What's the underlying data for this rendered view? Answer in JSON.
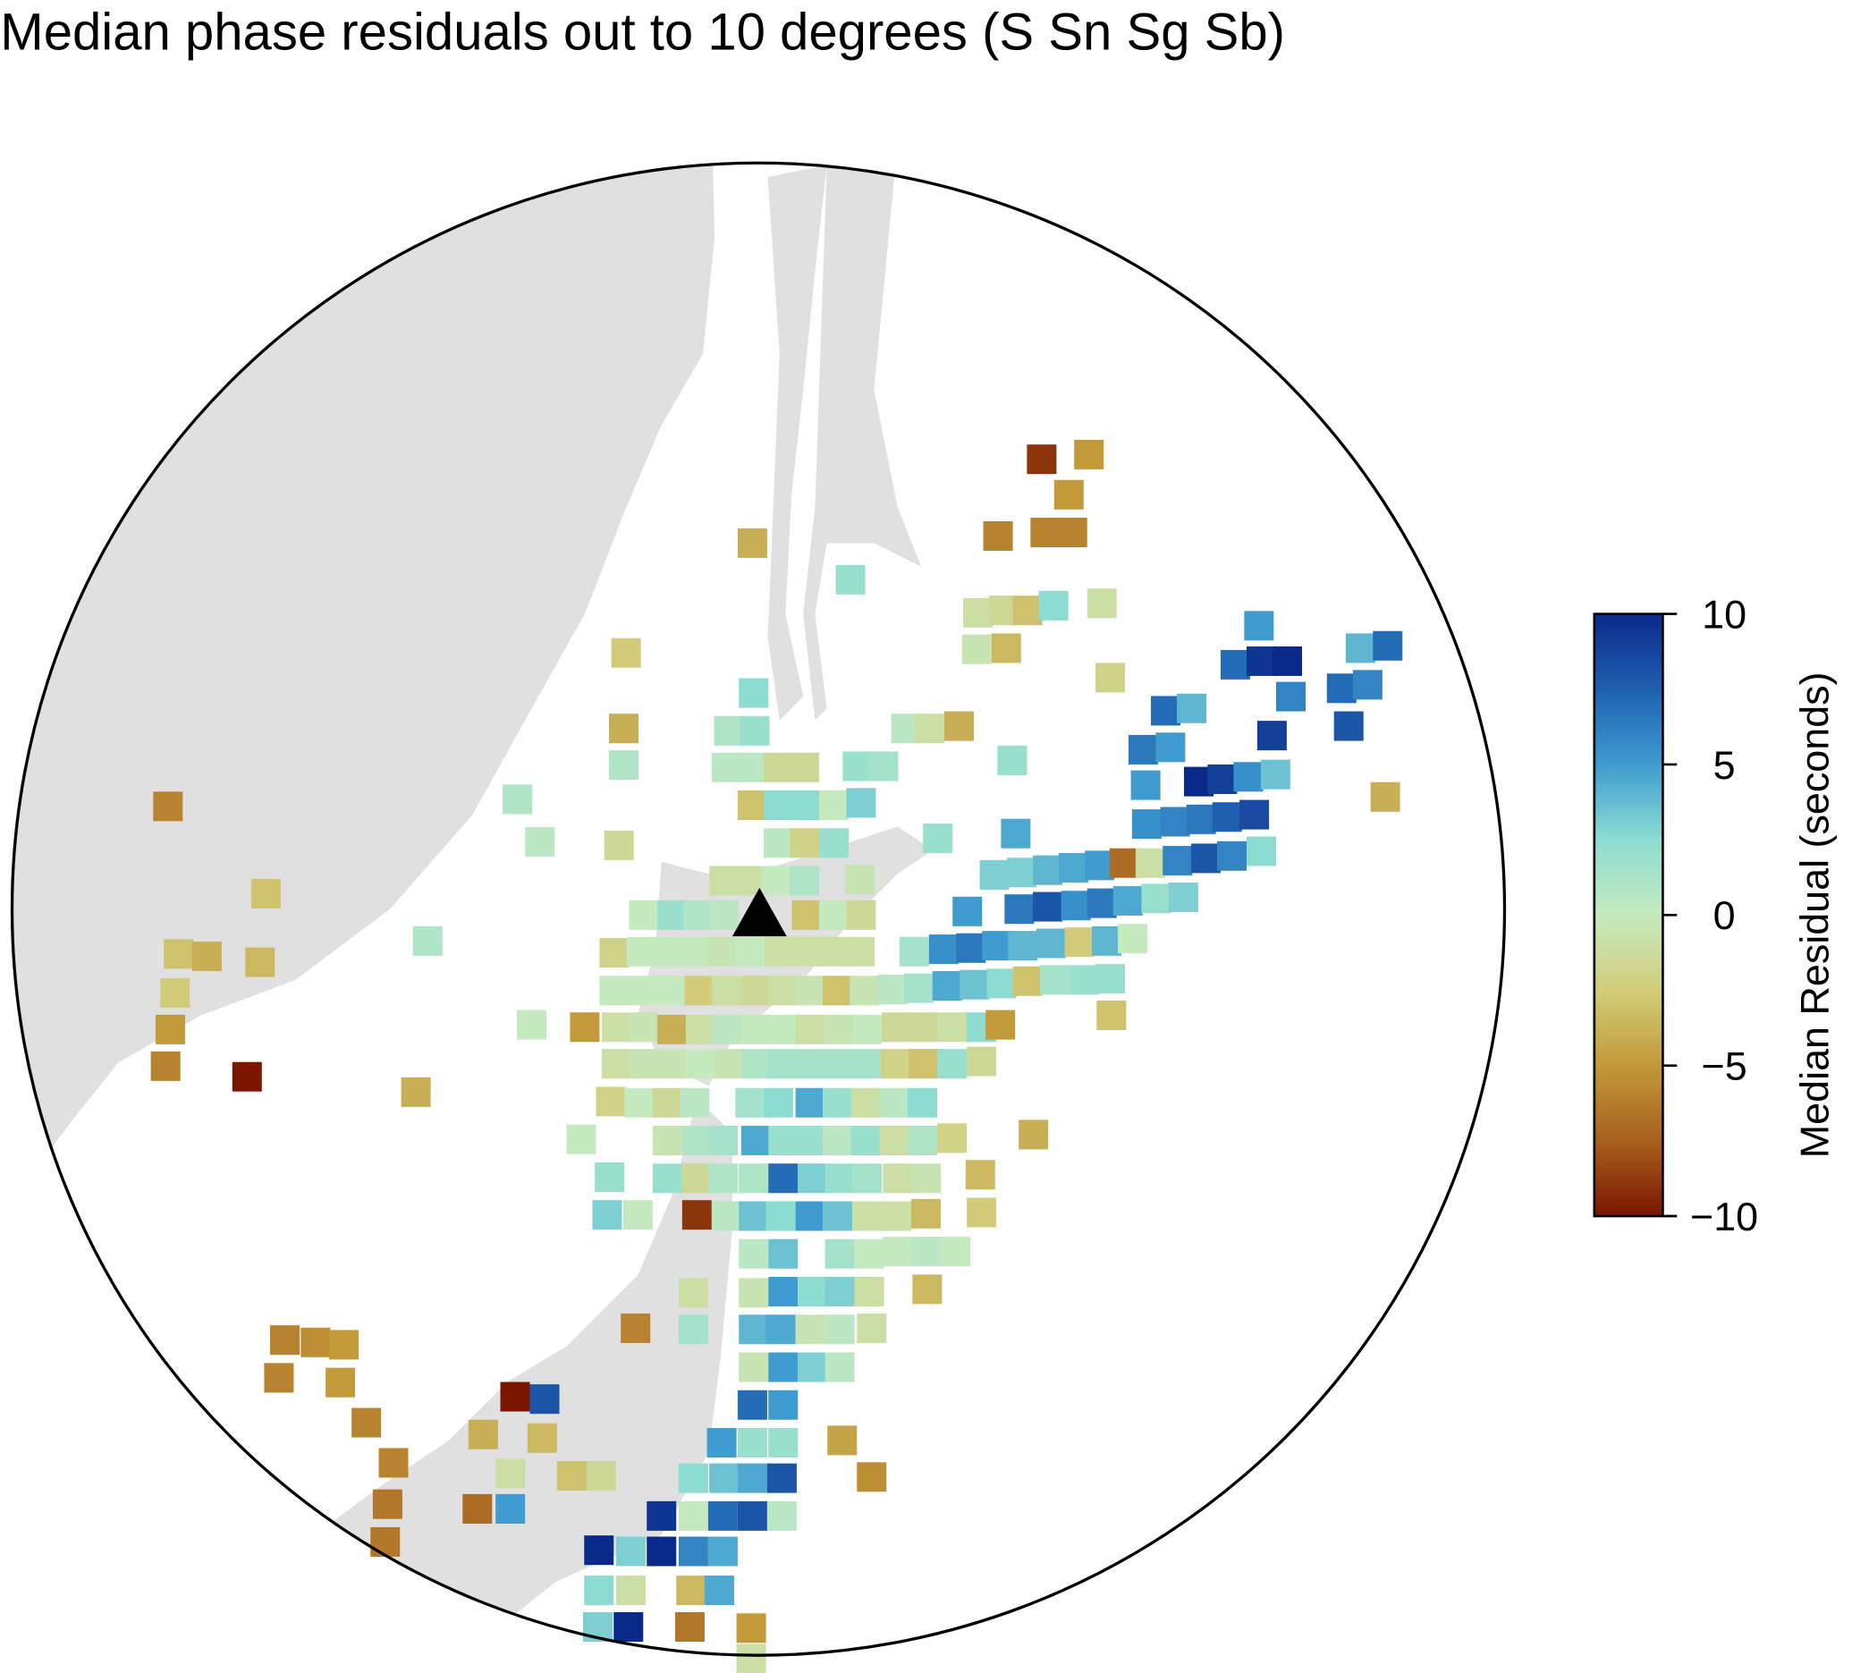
{
  "title": "Median phase residuals out to 10 degrees (S Sn Sg Sb)",
  "colorbar": {
    "label": "Median Residual (seconds)",
    "lim": [
      -10,
      10
    ],
    "ticks": [
      {
        "value": -10,
        "label": "−10"
      },
      {
        "value": -5,
        "label": "−5"
      },
      0,
      5,
      10
    ],
    "colormap": [
      "#7a1600",
      "#a8601e",
      "#c29a3a",
      "#d2cc7a",
      "#c6eac0",
      "#8ddcd2",
      "#3e9cd0",
      "#1f60b0",
      "#0a2a8a"
    ]
  },
  "cells": [
    -9,
    -5,
    -5,
    -6,
    -6,
    -6,
    -4,
    2,
    -1,
    -1.5,
    -3,
    2.5,
    -1,
    5,
    7,
    9.5,
    10,
    4,
    7,
    -2.5,
    -0.5,
    -3.5,
    -2,
    6,
    7,
    6,
    7,
    4,
    2.5,
    -4,
    1,
    2,
    0.5,
    -1,
    -4,
    9,
    8,
    1,
    0.5,
    0.5,
    -1.5,
    -1.5,
    2,
    1.5,
    2,
    6.5,
    5,
    10,
    9,
    5.5,
    3.5,
    -4,
    1,
    -3,
    2.5,
    2.5,
    0,
    3,
    5,
    -6,
    5.5,
    6,
    6.5,
    7.5,
    8.5,
    0.5,
    -2,
    2,
    2,
    4.5,
    0.5,
    -1.5,
    -1,
    -1,
    0,
    1,
    -0.5,
    3,
    3,
    4,
    4.5,
    5,
    -7,
    -1,
    6,
    8,
    6,
    2.5,
    -3,
    0,
    2,
    1,
    0.5,
    -3,
    0,
    -1.5,
    5,
    6.5,
    8,
    5.5,
    6.5,
    4.5,
    2,
    3,
    1,
    -3,
    -4,
    -3.5,
    -2,
    0,
    0,
    0,
    -0.5,
    0,
    -1,
    -1,
    -1,
    -1,
    1.5,
    5.5,
    6.5,
    5,
    4,
    4,
    -2.5,
    4,
    0,
    -2.5,
    0,
    0,
    0,
    -2.5,
    -1,
    -1.5,
    -1,
    -0.5,
    -3,
    -0.5,
    0.5,
    1.5,
    4.5,
    3.5,
    2.5,
    -3,
    1.5,
    2,
    2,
    -5,
    0,
    -5,
    -1,
    -0.5,
    -4,
    -1,
    0.5,
    0,
    0,
    -1,
    -0.5,
    0,
    -1.5,
    -1.5,
    -1,
    2.5,
    -5,
    -3,
    -6,
    -10,
    -4,
    -1,
    -0.5,
    -0.5,
    0,
    -0.5,
    1,
    1.5,
    1.5,
    1.5,
    1.5,
    -2,
    -3,
    2,
    -1.5,
    -2,
    0,
    -1.5,
    0.5,
    1.5,
    2.5,
    4.5,
    2,
    -1,
    0.5,
    2.5,
    0,
    -0.5,
    1,
    1.5,
    4.5,
    2,
    2,
    0.5,
    2,
    -1,
    1,
    -2,
    -4,
    2,
    2,
    -1.5,
    1,
    1,
    7,
    3,
    2,
    1.5,
    -1,
    -0.5,
    -3.5,
    3,
    0,
    -9,
    0.5,
    3.5,
    2.5,
    5,
    3.5,
    -1,
    -1,
    -3.5,
    -2.5,
    0.5,
    3.5,
    1.5,
    0,
    0,
    0.5,
    0,
    -1,
    -0.5,
    5,
    2.5,
    3,
    -1,
    -3.5,
    -6,
    -5.5,
    -5,
    -6,
    1.5,
    4,
    4.5,
    -0.5,
    0.5,
    -1,
    -6,
    -5,
    -0.5,
    5,
    3,
    0.5,
    -6,
    -10,
    8,
    7,
    5,
    -6,
    -4,
    -3.5,
    5,
    2,
    2,
    -4.5,
    -1,
    -3,
    -1.5,
    2.5,
    3.5,
    4.5,
    8,
    -5.5,
    -6.5,
    -7,
    5,
    9.5,
    0,
    7,
    8,
    0.5,
    -6.5,
    10,
    3,
    10,
    6,
    4.5,
    2.5,
    -1,
    -3.5,
    4.5,
    3,
    10,
    -6.5,
    -5,
    -1
  ]
}
